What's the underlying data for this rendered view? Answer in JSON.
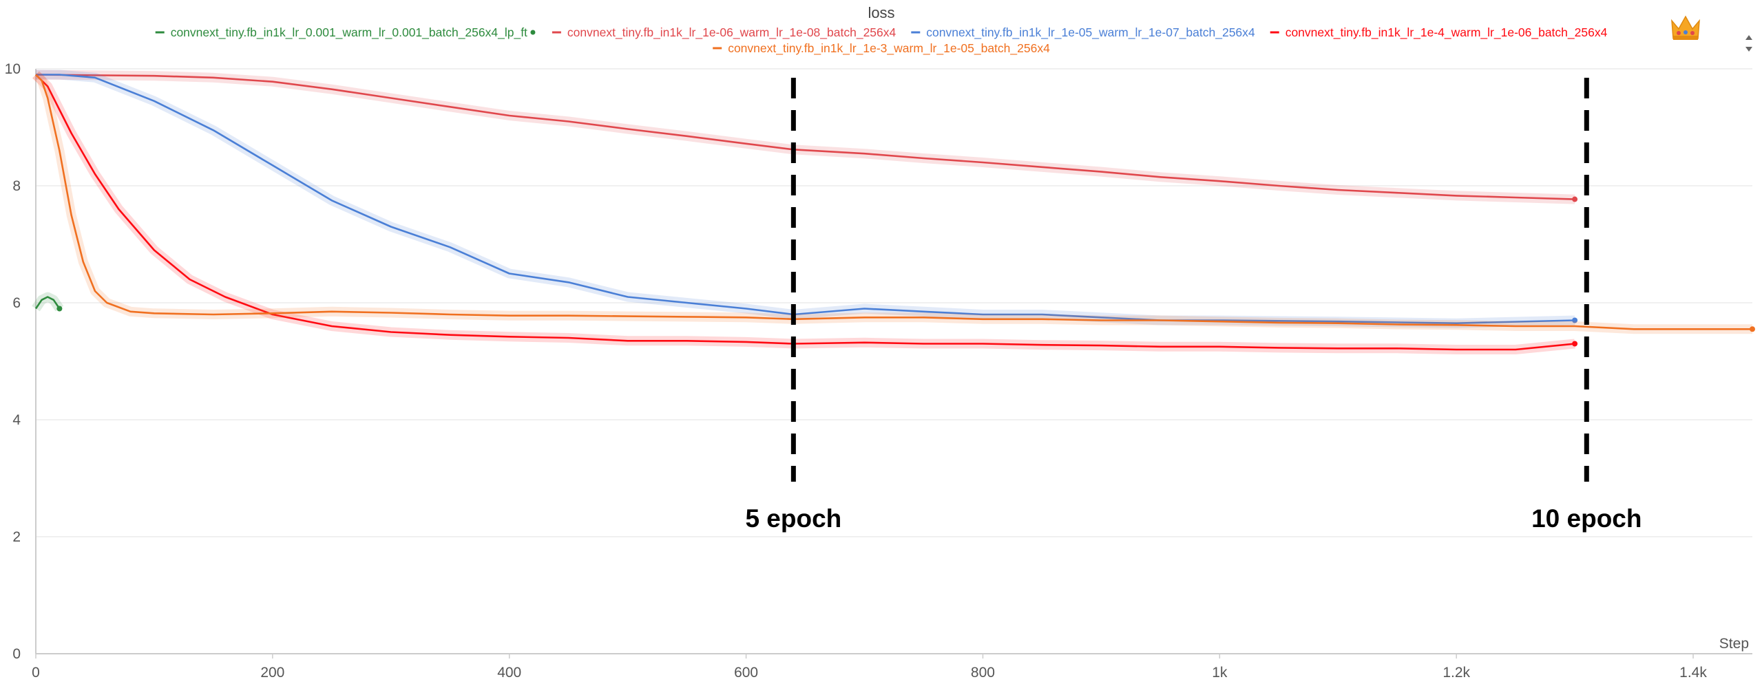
{
  "chart_data": {
    "type": "line",
    "title": "loss",
    "xlabel": "Step",
    "ylabel": "",
    "xlim": [
      0,
      1450
    ],
    "ylim": [
      0,
      10
    ],
    "x_ticks": [
      {
        "value": 0,
        "label": "0"
      },
      {
        "value": 200,
        "label": "200"
      },
      {
        "value": 400,
        "label": "400"
      },
      {
        "value": 600,
        "label": "600"
      },
      {
        "value": 800,
        "label": "800"
      },
      {
        "value": 1000,
        "label": "1k"
      },
      {
        "value": 1200,
        "label": "1.2k"
      },
      {
        "value": 1400,
        "label": "1.4k"
      }
    ],
    "y_ticks": [
      {
        "value": 0,
        "label": "0"
      },
      {
        "value": 2,
        "label": "2"
      },
      {
        "value": 4,
        "label": "4"
      },
      {
        "value": 6,
        "label": "6"
      },
      {
        "value": 8,
        "label": "8"
      },
      {
        "value": 10,
        "label": "10"
      }
    ],
    "grid": true,
    "legend_position": "top",
    "series": [
      {
        "name": "convnext_tiny.fb_in1k_lr_0.001_warm_lr_0.001_batch_256x4_lp_ft",
        "color": "#2e8b3e",
        "x": [
          0,
          5,
          10,
          15,
          20
        ],
        "y": [
          5.9,
          6.05,
          6.1,
          6.05,
          5.9
        ]
      },
      {
        "name": "convnext_tiny.fb_in1k_lr_1e-06_warm_lr_1e-08_batch_256x4",
        "color": "#e0474c",
        "x": [
          0,
          100,
          150,
          200,
          250,
          300,
          350,
          400,
          450,
          500,
          550,
          600,
          640,
          700,
          750,
          800,
          850,
          900,
          950,
          1000,
          1050,
          1100,
          1150,
          1200,
          1250,
          1300
        ],
        "y": [
          9.9,
          9.88,
          9.85,
          9.78,
          9.65,
          9.5,
          9.35,
          9.2,
          9.1,
          8.97,
          8.85,
          8.72,
          8.62,
          8.55,
          8.47,
          8.4,
          8.32,
          8.24,
          8.15,
          8.08,
          8.0,
          7.93,
          7.88,
          7.83,
          7.8,
          7.77
        ]
      },
      {
        "name": "convnext_tiny.fb_in1k_lr_1e-05_warm_lr_1e-07_batch_256x4",
        "color": "#4a7fd6",
        "x": [
          0,
          20,
          50,
          100,
          150,
          200,
          250,
          300,
          350,
          400,
          450,
          500,
          550,
          600,
          640,
          700,
          750,
          800,
          850,
          900,
          950,
          1000,
          1100,
          1200,
          1300
        ],
        "y": [
          9.9,
          9.9,
          9.85,
          9.45,
          8.95,
          8.35,
          7.75,
          7.3,
          6.95,
          6.5,
          6.35,
          6.1,
          6.0,
          5.9,
          5.8,
          5.9,
          5.85,
          5.8,
          5.8,
          5.75,
          5.7,
          5.7,
          5.68,
          5.65,
          5.7
        ]
      },
      {
        "name": "convnext_tiny.fb_in1k_lr_1e-4_warm_lr_1e-06_batch_256x4",
        "color": "#ff0a12",
        "x": [
          0,
          10,
          30,
          50,
          70,
          100,
          130,
          160,
          200,
          250,
          300,
          350,
          400,
          450,
          500,
          550,
          600,
          640,
          700,
          750,
          800,
          850,
          900,
          950,
          1000,
          1050,
          1100,
          1150,
          1200,
          1250,
          1300
        ],
        "y": [
          9.9,
          9.7,
          8.9,
          8.2,
          7.6,
          6.9,
          6.4,
          6.1,
          5.8,
          5.6,
          5.5,
          5.45,
          5.42,
          5.4,
          5.35,
          5.35,
          5.33,
          5.3,
          5.32,
          5.3,
          5.3,
          5.28,
          5.27,
          5.25,
          5.25,
          5.23,
          5.22,
          5.22,
          5.2,
          5.2,
          5.3
        ]
      },
      {
        "name": "convnext_tiny.fb_in1k_lr_1e-3_warm_lr_1e-05_batch_256x4",
        "color": "#f07020",
        "x": [
          0,
          5,
          10,
          20,
          30,
          40,
          50,
          60,
          80,
          100,
          150,
          200,
          250,
          300,
          350,
          400,
          450,
          500,
          550,
          600,
          640,
          700,
          750,
          800,
          850,
          900,
          950,
          1000,
          1050,
          1100,
          1150,
          1200,
          1250,
          1300,
          1350,
          1400,
          1450
        ],
        "y": [
          9.9,
          9.8,
          9.5,
          8.6,
          7.5,
          6.7,
          6.2,
          6.0,
          5.85,
          5.82,
          5.8,
          5.82,
          5.85,
          5.83,
          5.8,
          5.78,
          5.78,
          5.77,
          5.76,
          5.75,
          5.72,
          5.75,
          5.75,
          5.72,
          5.72,
          5.7,
          5.7,
          5.68,
          5.66,
          5.65,
          5.63,
          5.62,
          5.6,
          5.6,
          5.55,
          5.55,
          5.55
        ]
      }
    ],
    "annotations": [
      {
        "label": "5 epoch",
        "x": 640
      },
      {
        "label": "10 epoch",
        "x": 1310
      }
    ]
  },
  "ui": {
    "crown_icon": "crown-icon",
    "scroll_up_icon": "triangle-up-icon",
    "scroll_down_icon": "triangle-down-icon"
  }
}
